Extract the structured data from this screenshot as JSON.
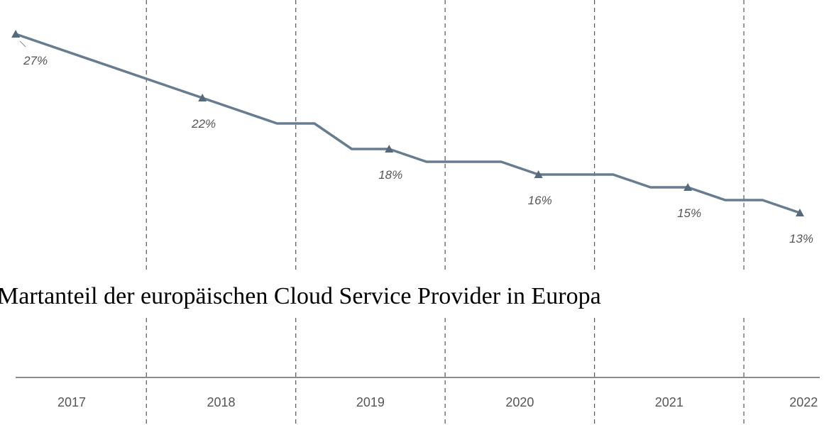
{
  "chart_data": {
    "type": "line",
    "title": "Martanteil der europäischen Cloud Service Provider in Europa",
    "x": [
      2017.125,
      2018.375,
      2018.875,
      2019.125,
      2019.375,
      2019.625,
      2019.875,
      2020.375,
      2020.625,
      2021.125,
      2021.375,
      2021.625,
      2021.875,
      2022.125,
      2022.375
    ],
    "series": [
      {
        "color": "#687c90",
        "values": [
          27,
          22,
          20,
          20,
          18,
          18,
          17,
          17,
          16,
          16,
          15,
          15,
          14,
          14,
          13
        ],
        "value_labels": [
          "27%",
          "22%",
          null,
          null,
          null,
          "18%",
          null,
          null,
          "16%",
          null,
          null,
          "15%",
          null,
          null,
          "13%"
        ]
      }
    ],
    "xlim": [
      2017.02,
      2022.57
    ],
    "ylim": [
      10,
      30
    ],
    "xticks": [
      {
        "value": 2017.5,
        "label": "2017"
      },
      {
        "value": 2018.5,
        "label": "2018"
      },
      {
        "value": 2019.5,
        "label": "2019"
      },
      {
        "value": 2020.5,
        "label": "2020"
      },
      {
        "value": 2021.5,
        "label": "2021"
      },
      {
        "value": 2022.4,
        "label": "2022"
      }
    ],
    "xgrid": [
      2018,
      2019,
      2020,
      2021,
      2022
    ]
  }
}
